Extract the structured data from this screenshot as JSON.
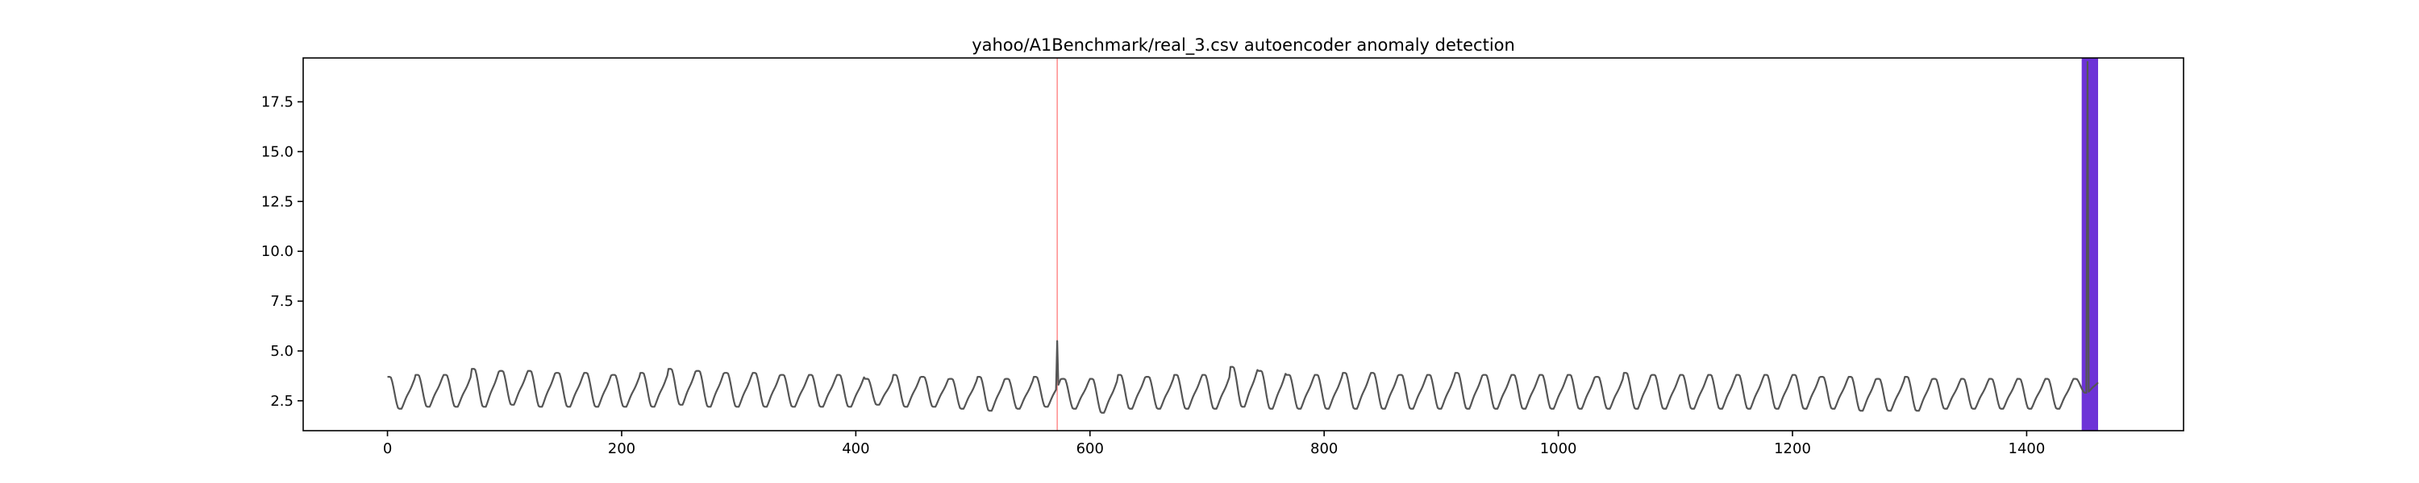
{
  "chart_data": {
    "type": "line",
    "title": "yahoo/A1Benchmark/real_3.csv autoencoder anomaly detection",
    "xlabel": "",
    "ylabel": "",
    "xlim": [
      -72,
      1534
    ],
    "ylim": [
      1.0,
      19.7
    ],
    "xticks": [
      0,
      200,
      400,
      600,
      800,
      1000,
      1200,
      1400
    ],
    "yticks": [
      2.5,
      5.0,
      7.5,
      10.0,
      12.5,
      15.0,
      17.5
    ],
    "xtick_labels": [
      "0",
      "200",
      "400",
      "600",
      "800",
      "1000",
      "1200",
      "1400"
    ],
    "ytick_labels": [
      "2.5",
      "5.0",
      "7.5",
      "10.0",
      "12.5",
      "15.0",
      "17.5"
    ],
    "grid": false,
    "legend": "none",
    "series": [
      {
        "type": "line",
        "color": "#555555",
        "period": 24,
        "x_range": [
          0,
          1461
        ],
        "cycles": [
          [
            0,
            3.7,
            2.1
          ],
          [
            24,
            3.8,
            2.2
          ],
          [
            48,
            3.8,
            2.2
          ],
          [
            72,
            4.1,
            2.2
          ],
          [
            96,
            4.0,
            2.3
          ],
          [
            120,
            4.0,
            2.2
          ],
          [
            144,
            3.9,
            2.2
          ],
          [
            168,
            3.9,
            2.2
          ],
          [
            192,
            3.8,
            2.2
          ],
          [
            216,
            3.9,
            2.2
          ],
          [
            240,
            4.1,
            2.3
          ],
          [
            264,
            4.0,
            2.2
          ],
          [
            288,
            3.9,
            2.2
          ],
          [
            312,
            3.9,
            2.2
          ],
          [
            336,
            3.8,
            2.2
          ],
          [
            360,
            3.8,
            2.2
          ],
          [
            384,
            3.8,
            2.2
          ],
          [
            408,
            3.6,
            2.3
          ],
          [
            432,
            3.8,
            2.2
          ],
          [
            456,
            3.7,
            2.2
          ],
          [
            480,
            3.6,
            2.1
          ],
          [
            504,
            3.7,
            2.0
          ],
          [
            528,
            3.6,
            2.1
          ],
          [
            552,
            3.7,
            2.2
          ],
          [
            576,
            3.6,
            2.1
          ],
          [
            600,
            3.6,
            1.9
          ],
          [
            624,
            3.8,
            2.1
          ],
          [
            648,
            3.7,
            2.1
          ],
          [
            672,
            3.8,
            2.1
          ],
          [
            696,
            3.8,
            2.1
          ],
          [
            720,
            4.2,
            2.2
          ],
          [
            744,
            4.0,
            2.1
          ],
          [
            768,
            3.8,
            2.1
          ],
          [
            792,
            3.8,
            2.1
          ],
          [
            816,
            3.9,
            2.1
          ],
          [
            840,
            3.9,
            2.1
          ],
          [
            864,
            3.8,
            2.1
          ],
          [
            888,
            3.8,
            2.1
          ],
          [
            912,
            3.9,
            2.1
          ],
          [
            936,
            3.8,
            2.1
          ],
          [
            960,
            3.8,
            2.1
          ],
          [
            984,
            3.8,
            2.1
          ],
          [
            1008,
            3.8,
            2.1
          ],
          [
            1032,
            3.7,
            2.1
          ],
          [
            1056,
            3.9,
            2.1
          ],
          [
            1080,
            3.8,
            2.1
          ],
          [
            1104,
            3.8,
            2.1
          ],
          [
            1128,
            3.8,
            2.1
          ],
          [
            1152,
            3.8,
            2.1
          ],
          [
            1176,
            3.8,
            2.1
          ],
          [
            1200,
            3.8,
            2.1
          ],
          [
            1224,
            3.7,
            2.1
          ],
          [
            1248,
            3.7,
            2.0
          ],
          [
            1272,
            3.6,
            2.0
          ],
          [
            1296,
            3.7,
            2.0
          ],
          [
            1320,
            3.6,
            2.1
          ],
          [
            1344,
            3.6,
            2.1
          ],
          [
            1368,
            3.6,
            2.1
          ],
          [
            1392,
            3.6,
            2.1
          ],
          [
            1416,
            3.6,
            2.1
          ],
          [
            1440,
            3.6,
            2.9
          ]
        ],
        "spikes": [
          {
            "x": 572,
            "y": 5.5
          },
          {
            "x": 1452,
            "y": 19.5
          }
        ]
      }
    ],
    "anomaly_regions": [
      {
        "x_start": 571.5,
        "x_end": 572.5,
        "color": "#ff0000",
        "opacity": 0.45
      },
      {
        "x_start": 1447,
        "x_end": 1461,
        "color": "#6a2fd6",
        "opacity": 0.98
      }
    ]
  }
}
